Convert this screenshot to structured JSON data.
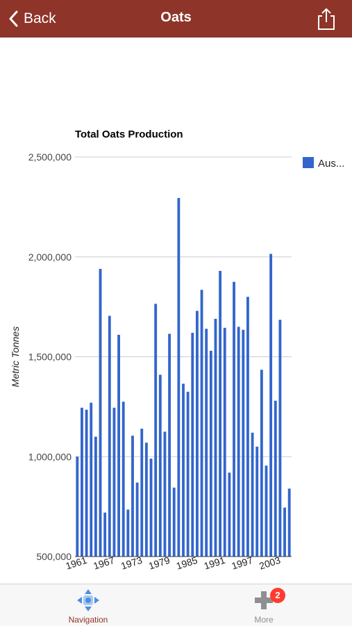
{
  "navbar": {
    "back_label": "Back",
    "title": "Oats",
    "bg_color": "#8e3429"
  },
  "chart_data": {
    "type": "bar",
    "title": "Total Oats Production",
    "ylabel": "Metric Tonnes",
    "xlabel": "",
    "ylim": [
      500000,
      2500000
    ],
    "yticks": [
      500000,
      1000000,
      1500000,
      2000000,
      2500000
    ],
    "ytick_labels": [
      "500,000",
      "1,000,000",
      "1,500,000",
      "2,000,000",
      "2,500,000"
    ],
    "xtick_labels": [
      "1961",
      "1967",
      "1973",
      "1979",
      "1985",
      "1991",
      "1997",
      "2003"
    ],
    "legend": "right",
    "grid": true,
    "bar_color": "#3366cc",
    "categories": [
      1961,
      1962,
      1963,
      1964,
      1965,
      1966,
      1967,
      1968,
      1969,
      1970,
      1971,
      1972,
      1973,
      1974,
      1975,
      1976,
      1977,
      1978,
      1979,
      1980,
      1981,
      1982,
      1983,
      1984,
      1985,
      1986,
      1987,
      1988,
      1989,
      1990,
      1991,
      1992,
      1993,
      1994,
      1995,
      1996,
      1997,
      1998,
      1999,
      2000,
      2001,
      2002,
      2003,
      2004,
      2005,
      2006,
      2007
    ],
    "series": [
      {
        "name": "Aus...",
        "values": [
          1000000,
          1245000,
          1235000,
          1270000,
          1100000,
          1940000,
          720000,
          1705000,
          1245000,
          1610000,
          1275000,
          735000,
          1105000,
          870000,
          1140000,
          1070000,
          990000,
          1765000,
          1410000,
          1125000,
          1615000,
          845000,
          2295000,
          1365000,
          1325000,
          1620000,
          1730000,
          1835000,
          1640000,
          1530000,
          1690000,
          1930000,
          1645000,
          920000,
          1875000,
          1650000,
          1635000,
          1800000,
          1120000,
          1050000,
          1435000,
          955000,
          2015000,
          1280000,
          1685000,
          745000,
          840000
        ]
      }
    ]
  },
  "tabbar": {
    "items": [
      {
        "label": "Navigation",
        "icon": "navigation-arrows-icon",
        "color": "#8e3429"
      },
      {
        "label": "More",
        "icon": "plus-icon",
        "badge": "2",
        "color": "#8e8e93"
      }
    ]
  }
}
